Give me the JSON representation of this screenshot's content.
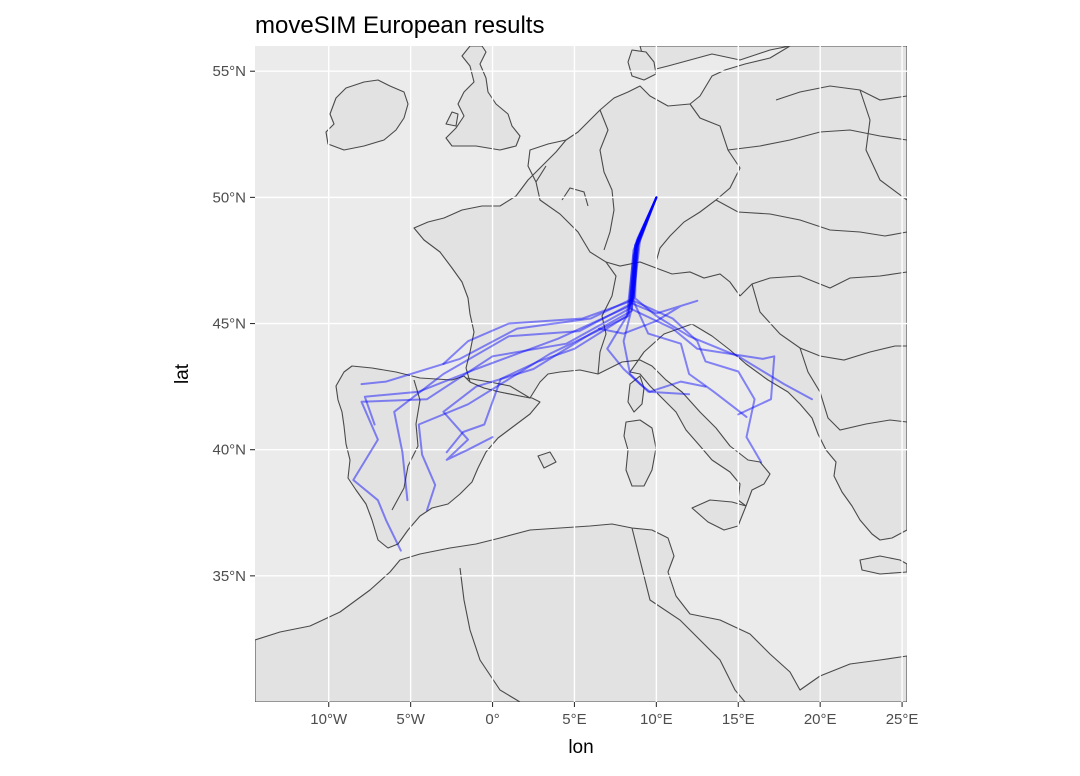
{
  "title": "moveSIM European results",
  "x_axis": {
    "label": "lon",
    "ticks": [
      {
        "value": -10,
        "label": "10°W"
      },
      {
        "value": -5,
        "label": "5°W"
      },
      {
        "value": 0,
        "label": "0°"
      },
      {
        "value": 5,
        "label": "5°E"
      },
      {
        "value": 10,
        "label": "10°E"
      },
      {
        "value": 15,
        "label": "15°E"
      },
      {
        "value": 20,
        "label": "20°E"
      },
      {
        "value": 25,
        "label": "25°E"
      }
    ]
  },
  "y_axis": {
    "label": "lat",
    "ticks": [
      {
        "value": 35,
        "label": "35°N"
      },
      {
        "value": 40,
        "label": "40°N"
      },
      {
        "value": 45,
        "label": "45°N"
      },
      {
        "value": 50,
        "label": "50°N"
      },
      {
        "value": 55,
        "label": "55°N"
      }
    ]
  },
  "chart_data": {
    "type": "line",
    "title": "moveSIM European results",
    "xlabel": "lon",
    "ylabel": "lat",
    "xlim": [
      -14.5,
      25.3
    ],
    "ylim": [
      30.0,
      56.0
    ],
    "grid": true,
    "colors": {
      "panel": "#ebebeb",
      "land": "#e2e2e2",
      "border": "#4a4a4a",
      "track": "#0000ff"
    },
    "tracks": [
      [
        [
          10.0,
          50.0
        ],
        [
          9.0,
          48.3
        ],
        [
          8.6,
          46.0
        ],
        [
          6.0,
          45.2
        ],
        [
          1.5,
          44.8
        ],
        [
          -2.0,
          43.6
        ],
        [
          -6.5,
          42.7
        ],
        [
          -8.0,
          42.6
        ]
      ],
      [
        [
          10.0,
          50.0
        ],
        [
          8.9,
          48.3
        ],
        [
          8.5,
          45.8
        ],
        [
          5.3,
          44.7
        ],
        [
          1.0,
          44.5
        ],
        [
          -3.0,
          43.0
        ],
        [
          -6.0,
          41.5
        ],
        [
          -5.5,
          39.9
        ],
        [
          -5.2,
          38.0
        ]
      ],
      [
        [
          10.0,
          50.0
        ],
        [
          8.8,
          48.2
        ],
        [
          8.4,
          45.6
        ],
        [
          4.5,
          44.2
        ],
        [
          0.0,
          43.7
        ],
        [
          -4.0,
          42.0
        ],
        [
          -8.0,
          41.9
        ],
        [
          -7.0,
          40.4
        ],
        [
          -8.5,
          38.8
        ],
        [
          -7.0,
          38.0
        ],
        [
          -6.5,
          37.2
        ],
        [
          -5.6,
          36.0
        ]
      ],
      [
        [
          10.0,
          50.0
        ],
        [
          8.7,
          48.1
        ],
        [
          8.4,
          45.7
        ],
        [
          4.0,
          44.4
        ],
        [
          -1.0,
          43.2
        ],
        [
          -4.5,
          42.3
        ],
        [
          -7.8,
          42.1
        ],
        [
          -7.2,
          41.0
        ]
      ],
      [
        [
          10.0,
          50.0
        ],
        [
          8.7,
          47.9
        ],
        [
          8.3,
          45.3
        ],
        [
          3.5,
          43.8
        ],
        [
          -1.5,
          41.8
        ],
        [
          -4.5,
          41.0
        ],
        [
          -4.3,
          39.8
        ],
        [
          -3.5,
          38.6
        ],
        [
          -4.0,
          37.6
        ]
      ],
      [
        [
          10.0,
          50.0
        ],
        [
          8.8,
          48.0
        ],
        [
          8.5,
          45.5
        ],
        [
          6.0,
          44.6
        ],
        [
          2.5,
          43.2
        ],
        [
          -1.0,
          42.5
        ],
        [
          -3.0,
          41.5
        ],
        [
          -1.5,
          40.4
        ],
        [
          -2.8,
          39.6
        ],
        [
          -1.5,
          40.0
        ],
        [
          0.0,
          40.5
        ]
      ],
      [
        [
          10.0,
          50.0
        ],
        [
          8.6,
          47.7
        ],
        [
          8.2,
          45.3
        ],
        [
          5.0,
          44.0
        ],
        [
          2.8,
          43.5
        ],
        [
          0.5,
          42.8
        ],
        [
          -0.5,
          41.0
        ],
        [
          -1.8,
          40.7
        ],
        [
          -2.8,
          39.9
        ]
      ],
      [
        [
          10.0,
          50.0
        ],
        [
          8.8,
          48.2
        ],
        [
          8.5,
          45.9
        ],
        [
          5.5,
          45.2
        ],
        [
          1.0,
          45.0
        ],
        [
          -1.5,
          44.3
        ],
        [
          -3.0,
          43.4
        ]
      ],
      [
        [
          10.0,
          50.0
        ],
        [
          8.9,
          48.1
        ],
        [
          8.6,
          45.9
        ],
        [
          11.0,
          45.2
        ],
        [
          12.5,
          44.3
        ],
        [
          13.0,
          43.5
        ],
        [
          15.0,
          43.1
        ],
        [
          16.0,
          42.0
        ],
        [
          15.5,
          40.5
        ],
        [
          16.4,
          39.5
        ]
      ],
      [
        [
          10.0,
          50.0
        ],
        [
          8.8,
          48.3
        ],
        [
          8.7,
          46.0
        ],
        [
          10.0,
          45.3
        ],
        [
          12.0,
          44.5
        ],
        [
          15.0,
          43.7
        ],
        [
          17.8,
          42.6
        ],
        [
          19.5,
          42.0
        ]
      ],
      [
        [
          10.0,
          50.0
        ],
        [
          8.7,
          48.0
        ],
        [
          8.4,
          45.6
        ],
        [
          11.0,
          44.8
        ],
        [
          12.5,
          44.0
        ],
        [
          16.5,
          43.6
        ],
        [
          17.2,
          43.7
        ],
        [
          17.0,
          42.0
        ],
        [
          15.0,
          41.4
        ]
      ],
      [
        [
          10.0,
          50.0
        ],
        [
          8.8,
          48.1
        ],
        [
          8.5,
          45.8
        ],
        [
          10.0,
          45.4
        ],
        [
          12.5,
          45.9
        ],
        [
          11.5,
          45.7
        ],
        [
          10.0,
          45.1
        ],
        [
          8.0,
          44.6
        ],
        [
          6.5,
          44.8
        ]
      ],
      [
        [
          10.0,
          50.0
        ],
        [
          8.9,
          48.4
        ],
        [
          8.6,
          45.9
        ],
        [
          9.5,
          44.6
        ],
        [
          11.5,
          44.2
        ],
        [
          12.0,
          43.0
        ],
        [
          13.5,
          42.3
        ],
        [
          14.5,
          41.8
        ],
        [
          15.5,
          41.3
        ]
      ],
      [
        [
          10.0,
          50.0
        ],
        [
          8.7,
          48.1
        ],
        [
          8.5,
          45.6
        ],
        [
          8.0,
          44.3
        ],
        [
          8.4,
          43.0
        ],
        [
          9.5,
          42.3
        ],
        [
          12.0,
          42.2
        ]
      ],
      [
        [
          10.0,
          50.0
        ],
        [
          8.6,
          47.9
        ],
        [
          8.3,
          45.4
        ],
        [
          7.0,
          44.0
        ],
        [
          8.0,
          43.2
        ],
        [
          9.0,
          42.6
        ],
        [
          9.6,
          42.3
        ],
        [
          11.5,
          42.7
        ],
        [
          13.0,
          42.5
        ]
      ]
    ]
  }
}
